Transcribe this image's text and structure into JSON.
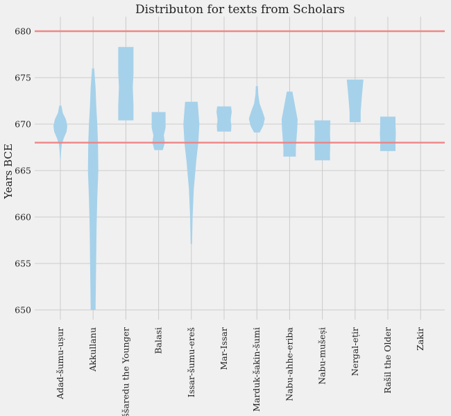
{
  "chart_data": {
    "type": "violin",
    "title": "Distributon for texts from Scholars",
    "xlabel": "",
    "ylabel": "Years BCE",
    "ylim": [
      650,
      681.5
    ],
    "yticks": [
      650,
      655,
      660,
      665,
      670,
      675,
      680
    ],
    "grid": true,
    "colors": {
      "violin": "#a6d1ea",
      "reference_line": "#f08080",
      "background": "#f0f0f0",
      "grid": "#cbcbcb"
    },
    "reference_lines": [
      680,
      668
    ],
    "categories": [
      "Adad-šumu-uṣur",
      "Akkullanu",
      "Aššaredu the Younger",
      "Balasi",
      "Issar-šumu-ereš",
      "Mar-Issar",
      "Marduk-šakin-šumi",
      "Nabu-ahhe-eriba",
      "Nabu-mušeṣi",
      "Nergal-eṭir",
      "Rašil the Older",
      "Zakir"
    ],
    "series": [
      {
        "category": "Adad-šumu-uṣur",
        "profile": [
          [
            666.2,
            0.5
          ],
          [
            667.0,
            1
          ],
          [
            667.8,
            2
          ],
          [
            668.5,
            5
          ],
          [
            669.2,
            9
          ],
          [
            669.8,
            10
          ],
          [
            670.5,
            8
          ],
          [
            671.2,
            3.5
          ],
          [
            672.0,
            1.5
          ]
        ]
      },
      {
        "category": "Akkullanu",
        "profile": [
          [
            650,
            3.5
          ],
          [
            653,
            4
          ],
          [
            656,
            4.5
          ],
          [
            659,
            5
          ],
          [
            662,
            6
          ],
          [
            665,
            7.5
          ],
          [
            668,
            7
          ],
          [
            670,
            6
          ],
          [
            672,
            4.5
          ],
          [
            674,
            3.5
          ],
          [
            676,
            1.5
          ]
        ]
      },
      {
        "category": "Aššaredu the Younger",
        "profile": [
          [
            670.4,
            11
          ],
          [
            672.0,
            11
          ],
          [
            674.0,
            10
          ],
          [
            675.5,
            11
          ],
          [
            678.3,
            11
          ]
        ]
      },
      {
        "category": "Balasi",
        "profile": [
          [
            667.2,
            6
          ],
          [
            668.0,
            9
          ],
          [
            668.8,
            7.5
          ],
          [
            669.6,
            10
          ],
          [
            670.5,
            10
          ],
          [
            671.3,
            10
          ]
        ]
      },
      {
        "category": "Issar-šumu-ereš",
        "profile": [
          [
            657.1,
            1
          ],
          [
            660,
            1.8
          ],
          [
            663,
            3.5
          ],
          [
            666,
            7
          ],
          [
            668,
            10
          ],
          [
            670,
            11.5
          ],
          [
            671.5,
            10
          ],
          [
            672.4,
            9
          ]
        ]
      },
      {
        "category": "Mar-Issar",
        "profile": [
          [
            669.2,
            10
          ],
          [
            669.8,
            10.5
          ],
          [
            670.4,
            9.5
          ],
          [
            670.8,
            10
          ],
          [
            671.3,
            11
          ],
          [
            671.9,
            10
          ]
        ]
      },
      {
        "category": "Marduk-šakin-šumi",
        "profile": [
          [
            669.1,
            4
          ],
          [
            669.8,
            9
          ],
          [
            670.6,
            11.5
          ],
          [
            671.4,
            8
          ],
          [
            672.2,
            4
          ],
          [
            673.2,
            2
          ],
          [
            674.1,
            1.5
          ]
        ]
      },
      {
        "category": "Nabu-ahhe-eriba",
        "profile": [
          [
            666.5,
            9
          ],
          [
            667.5,
            9
          ],
          [
            668.5,
            10
          ],
          [
            669.5,
            11
          ],
          [
            670.5,
            11.5
          ],
          [
            671.5,
            9
          ],
          [
            672.5,
            6.5
          ],
          [
            673.5,
            4
          ]
        ]
      },
      {
        "category": "Nabu-mušeṣi",
        "profile": [
          [
            666.1,
            11
          ],
          [
            667.0,
            11
          ],
          [
            668.0,
            11.5
          ],
          [
            669.0,
            11
          ],
          [
            670.4,
            11.5
          ]
        ]
      },
      {
        "category": "Nergal-eṭir",
        "profile": [
          [
            670.2,
            8
          ],
          [
            671.3,
            8
          ],
          [
            672.3,
            9
          ],
          [
            673.2,
            10
          ],
          [
            674.0,
            11
          ],
          [
            674.8,
            12
          ]
        ]
      },
      {
        "category": "Rašil the Older",
        "profile": [
          [
            667.1,
            11
          ],
          [
            668.0,
            11
          ],
          [
            669.0,
            11.5
          ],
          [
            670.0,
            11
          ],
          [
            670.8,
            11
          ]
        ]
      },
      {
        "category": "Zakir",
        "profile": []
      }
    ]
  }
}
